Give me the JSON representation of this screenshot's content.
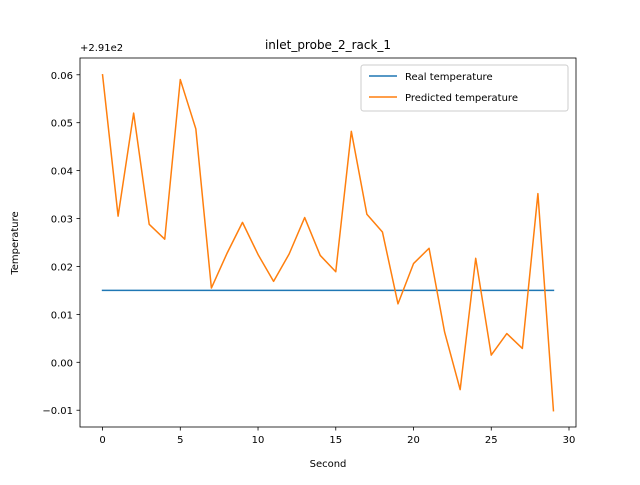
{
  "chart_data": {
    "type": "line",
    "title": "inlet_probe_2_rack_1",
    "xlabel": "Second",
    "ylabel": "Temperature",
    "offset_label": "+2.91e2",
    "xlim": [
      -1.45,
      30.45
    ],
    "ylim": [
      -0.0135,
      0.0635
    ],
    "x_ticks": [
      0,
      5,
      10,
      15,
      20,
      25,
      30
    ],
    "y_ticks": [
      -0.01,
      0.0,
      0.01,
      0.02,
      0.03,
      0.04,
      0.05,
      0.06
    ],
    "y_tick_labels": [
      "−0.01",
      "0.00",
      "0.01",
      "0.02",
      "0.03",
      "0.04",
      "0.05",
      "0.06"
    ],
    "grid": false,
    "legend_position": "top-right",
    "series": [
      {
        "name": "Real temperature",
        "color": "#1f77b4",
        "x": [
          0,
          29
        ],
        "values": [
          0.015,
          0.015
        ]
      },
      {
        "name": "Predicted temperature",
        "color": "#ff7f0e",
        "x": [
          0,
          1,
          2,
          3,
          4,
          5,
          6,
          7,
          8,
          9,
          10,
          11,
          12,
          13,
          14,
          15,
          16,
          17,
          18,
          19,
          20,
          21,
          22,
          23,
          24,
          25,
          26,
          27,
          28,
          29
        ],
        "values": [
          0.06,
          0.0305,
          0.052,
          0.0288,
          0.0257,
          0.059,
          0.0487,
          0.0155,
          0.0227,
          0.0292,
          0.0225,
          0.0169,
          0.0226,
          0.0302,
          0.0223,
          0.0189,
          0.0482,
          0.0309,
          0.0272,
          0.0122,
          0.0206,
          0.0238,
          0.0063,
          -0.0057,
          0.0217,
          0.0015,
          0.006,
          0.0029,
          0.0352,
          -0.0101
        ]
      }
    ]
  }
}
